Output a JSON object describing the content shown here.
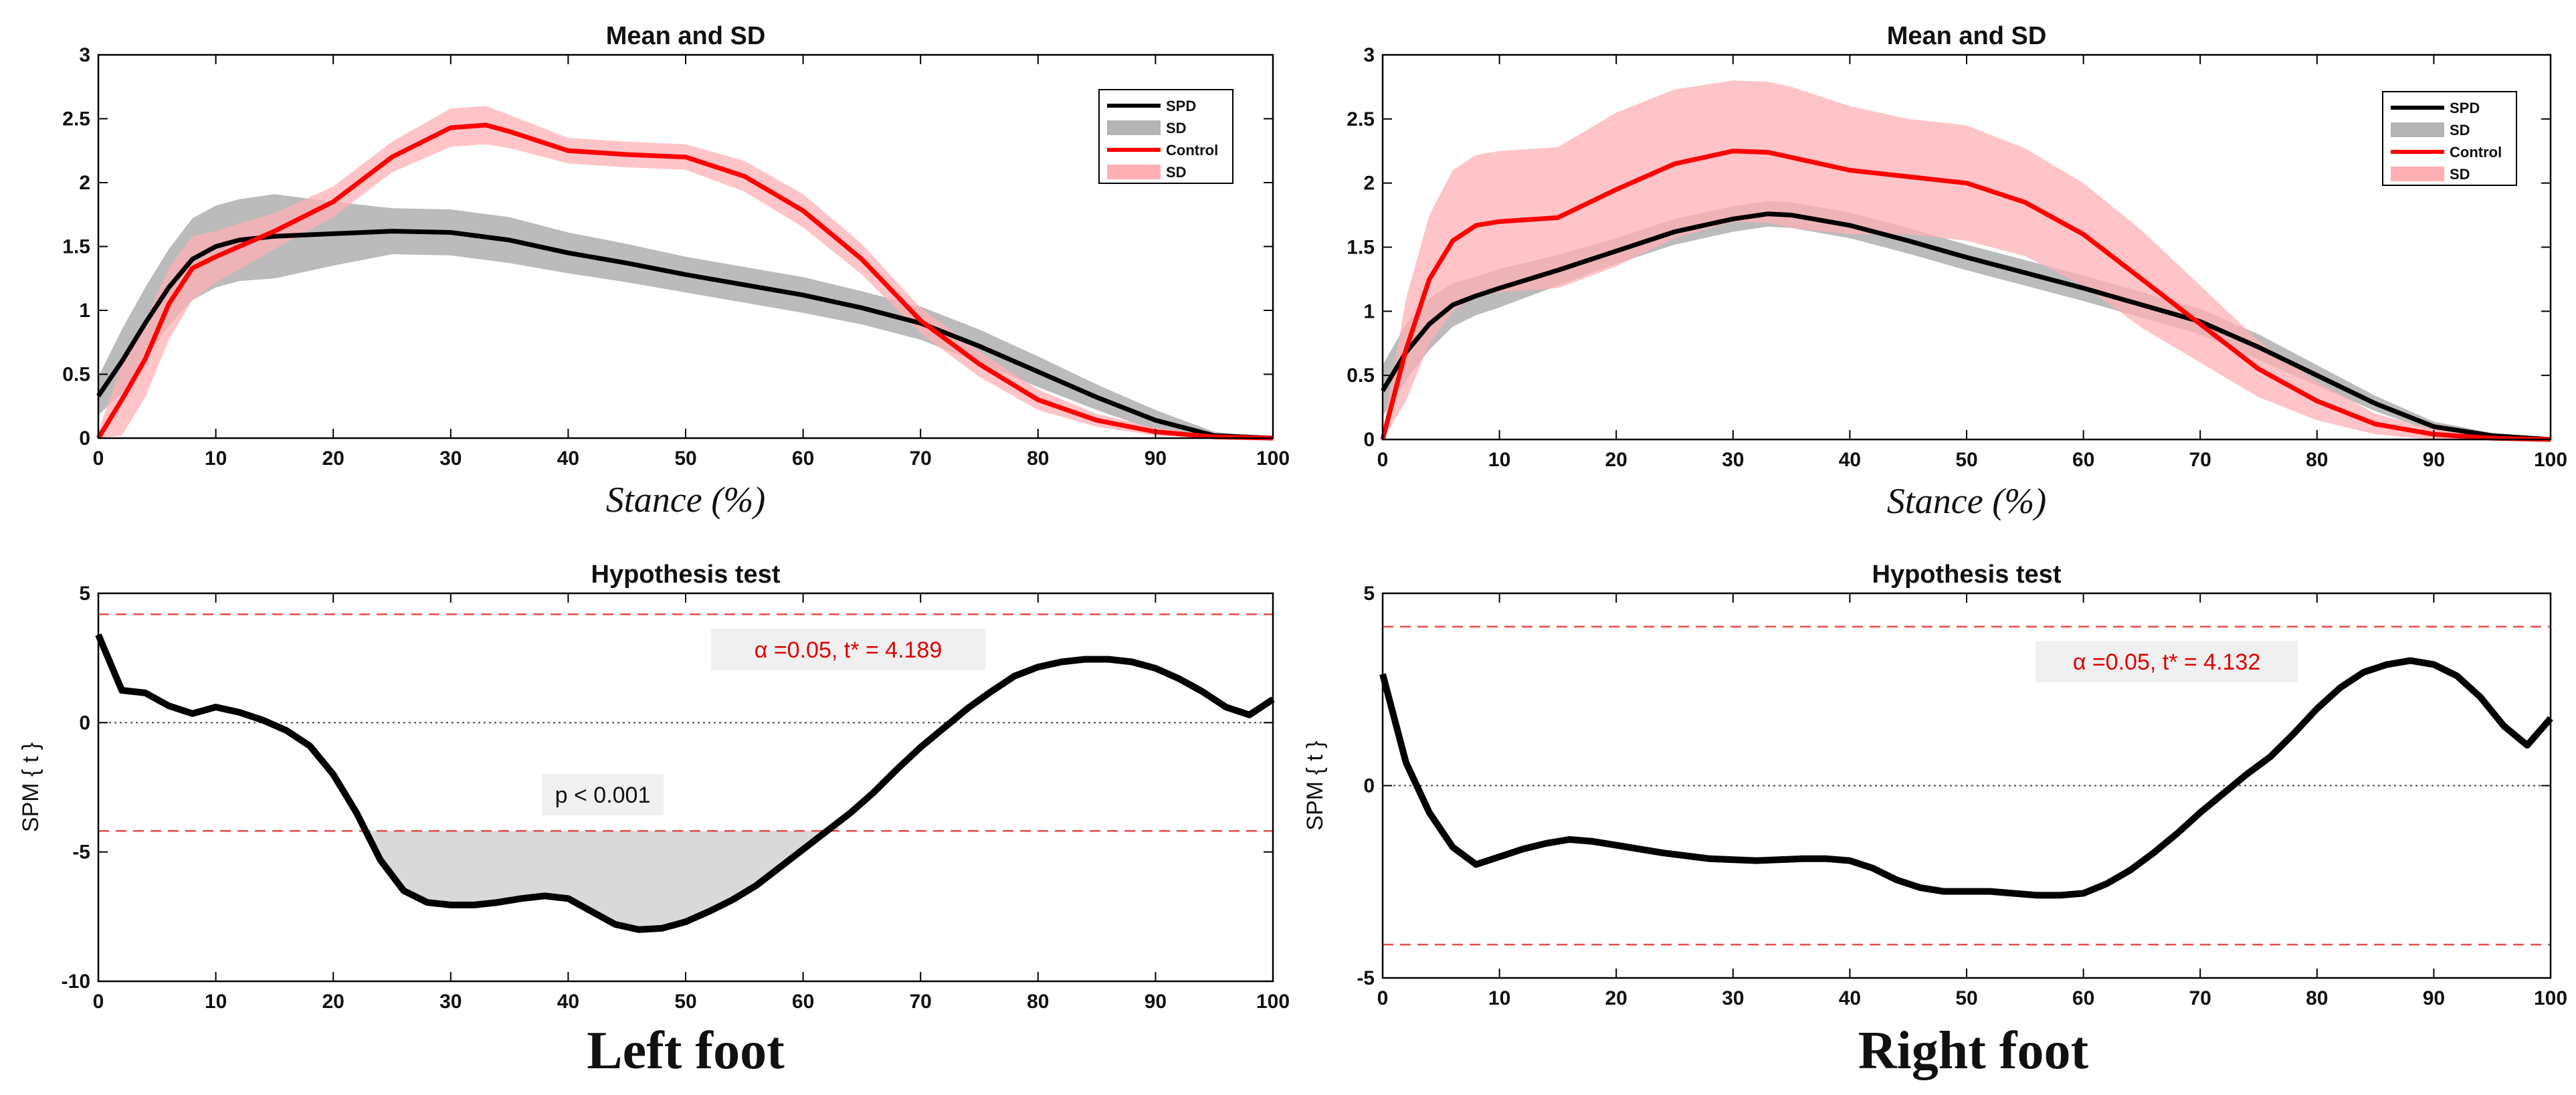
{
  "chart_data": [
    {
      "type": "line",
      "panel": "left-mean",
      "title": "Mean and SD",
      "xlabel": "Stance (%)",
      "ylabel": "",
      "xlim": [
        0,
        100
      ],
      "ylim": [
        0,
        3
      ],
      "xticks": [
        "0",
        "10",
        "20",
        "30",
        "40",
        "50",
        "60",
        "70",
        "80",
        "90",
        "100"
      ],
      "yticks": [
        "0",
        "0.5",
        "1",
        "1.5",
        "2",
        "2.5",
        "3"
      ],
      "legend_position": "top-right",
      "legend": [
        "SPD",
        "SD",
        "Control",
        "SD"
      ],
      "series": [
        {
          "name": "SPD",
          "color": "#000000",
          "x": [
            0,
            2,
            4,
            6,
            8,
            10,
            12,
            15,
            20,
            25,
            30,
            35,
            40,
            45,
            50,
            55,
            60,
            65,
            70,
            75,
            80,
            85,
            90,
            95,
            100
          ],
          "y": [
            0.33,
            0.6,
            0.9,
            1.18,
            1.4,
            1.5,
            1.55,
            1.58,
            1.6,
            1.62,
            1.61,
            1.55,
            1.45,
            1.37,
            1.28,
            1.2,
            1.12,
            1.02,
            0.9,
            0.72,
            0.52,
            0.32,
            0.14,
            0.02,
            0.0
          ],
          "sd": [
            0.15,
            0.25,
            0.28,
            0.3,
            0.32,
            0.32,
            0.32,
            0.33,
            0.25,
            0.18,
            0.18,
            0.18,
            0.16,
            0.15,
            0.14,
            0.14,
            0.14,
            0.13,
            0.13,
            0.13,
            0.12,
            0.1,
            0.08,
            0.03,
            0.0
          ]
        },
        {
          "name": "Control",
          "color": "#ff0000",
          "x": [
            0,
            2,
            4,
            6,
            8,
            10,
            12,
            15,
            20,
            25,
            30,
            33,
            35,
            40,
            45,
            50,
            55,
            60,
            65,
            70,
            75,
            80,
            85,
            90,
            95,
            100
          ],
          "y": [
            0.0,
            0.3,
            0.62,
            1.05,
            1.33,
            1.42,
            1.5,
            1.62,
            1.85,
            2.2,
            2.43,
            2.45,
            2.4,
            2.25,
            2.22,
            2.2,
            2.05,
            1.78,
            1.4,
            0.92,
            0.58,
            0.3,
            0.14,
            0.05,
            0.01,
            0.0
          ],
          "sd": [
            0.05,
            0.28,
            0.3,
            0.28,
            0.25,
            0.2,
            0.18,
            0.14,
            0.12,
            0.12,
            0.15,
            0.15,
            0.13,
            0.1,
            0.1,
            0.1,
            0.12,
            0.13,
            0.12,
            0.1,
            0.1,
            0.08,
            0.05,
            0.03,
            0.01,
            0.0
          ]
        }
      ]
    },
    {
      "type": "line",
      "panel": "right-mean",
      "title": "Mean and SD",
      "xlabel": "Stance (%)",
      "ylabel": "",
      "xlim": [
        0,
        100
      ],
      "ylim": [
        0,
        3
      ],
      "xticks": [
        "0",
        "10",
        "20",
        "30",
        "40",
        "50",
        "60",
        "70",
        "80",
        "90",
        "100"
      ],
      "yticks": [
        "0",
        "0.5",
        "1",
        "1.5",
        "2",
        "2.5",
        "3"
      ],
      "legend_position": "top-right",
      "legend": [
        "SPD",
        "SD",
        "Control",
        "SD"
      ],
      "series": [
        {
          "name": "SPD",
          "color": "#000000",
          "x": [
            0,
            2,
            4,
            6,
            8,
            10,
            15,
            20,
            25,
            30,
            33,
            35,
            40,
            45,
            50,
            55,
            60,
            65,
            70,
            75,
            80,
            85,
            90,
            95,
            100
          ],
          "y": [
            0.38,
            0.68,
            0.9,
            1.05,
            1.12,
            1.18,
            1.32,
            1.47,
            1.62,
            1.72,
            1.76,
            1.75,
            1.67,
            1.55,
            1.42,
            1.3,
            1.18,
            1.05,
            0.92,
            0.72,
            0.5,
            0.28,
            0.1,
            0.03,
            0.0
          ],
          "sd": [
            0.2,
            0.22,
            0.2,
            0.17,
            0.15,
            0.15,
            0.12,
            0.1,
            0.1,
            0.1,
            0.1,
            0.1,
            0.1,
            0.1,
            0.1,
            0.1,
            0.1,
            0.1,
            0.1,
            0.1,
            0.08,
            0.06,
            0.04,
            0.02,
            0.0
          ]
        },
        {
          "name": "Control",
          "color": "#ff0000",
          "x": [
            0,
            2,
            4,
            6,
            8,
            10,
            15,
            20,
            25,
            30,
            33,
            35,
            40,
            45,
            50,
            55,
            60,
            65,
            70,
            75,
            80,
            85,
            90,
            95,
            100
          ],
          "y": [
            0.0,
            0.7,
            1.25,
            1.55,
            1.67,
            1.7,
            1.73,
            1.95,
            2.15,
            2.25,
            2.24,
            2.2,
            2.1,
            2.05,
            2.0,
            1.85,
            1.6,
            1.25,
            0.9,
            0.55,
            0.3,
            0.12,
            0.04,
            0.01,
            0.0
          ],
          "sd": [
            0.05,
            0.4,
            0.5,
            0.55,
            0.55,
            0.55,
            0.55,
            0.6,
            0.58,
            0.55,
            0.55,
            0.55,
            0.5,
            0.45,
            0.45,
            0.42,
            0.4,
            0.38,
            0.3,
            0.22,
            0.15,
            0.08,
            0.04,
            0.02,
            0.0
          ]
        }
      ]
    },
    {
      "type": "line",
      "panel": "left-spm",
      "title": "Hypothesis test",
      "xlabel": "",
      "ylabel": "SPM { t }",
      "xlim": [
        0,
        100
      ],
      "ylim": [
        -10,
        5
      ],
      "xticks": [
        "0",
        "10",
        "20",
        "30",
        "40",
        "50",
        "60",
        "70",
        "80",
        "90",
        "100"
      ],
      "yticks": [
        "-10",
        "-5",
        "0",
        "5"
      ],
      "threshold": 4.189,
      "threshold_label": "α =0.05,    t* = 4.189",
      "cluster_label": "p < 0.001",
      "cluster_range": [
        22.5,
        63
      ],
      "series": [
        {
          "name": "SPM{t}",
          "color": "#000000",
          "x": [
            0,
            2,
            4,
            6,
            8,
            10,
            12,
            14,
            16,
            18,
            20,
            22,
            24,
            26,
            28,
            30,
            32,
            34,
            36,
            38,
            40,
            42,
            44,
            46,
            48,
            50,
            52,
            54,
            56,
            58,
            60,
            62,
            64,
            66,
            68,
            70,
            72,
            74,
            76,
            78,
            80,
            82,
            84,
            86,
            88,
            90,
            92,
            94,
            96,
            98,
            100
          ],
          "y": [
            3.4,
            1.25,
            1.15,
            0.65,
            0.35,
            0.6,
            0.4,
            0.1,
            -0.3,
            -0.9,
            -2.0,
            -3.5,
            -5.3,
            -6.5,
            -6.95,
            -7.05,
            -7.05,
            -6.95,
            -6.8,
            -6.7,
            -6.8,
            -7.3,
            -7.8,
            -8.0,
            -7.95,
            -7.7,
            -7.3,
            -6.85,
            -6.3,
            -5.6,
            -4.9,
            -4.2,
            -3.5,
            -2.7,
            -1.8,
            -0.95,
            -0.2,
            0.55,
            1.2,
            1.8,
            2.15,
            2.35,
            2.45,
            2.45,
            2.35,
            2.1,
            1.7,
            1.2,
            0.6,
            0.3,
            0.9
          ]
        }
      ]
    },
    {
      "type": "line",
      "panel": "right-spm",
      "title": "Hypothesis test",
      "xlabel": "",
      "ylabel": "SPM { t }",
      "xlim": [
        0,
        100
      ],
      "ylim": [
        -5,
        5
      ],
      "xticks": [
        "0",
        "10",
        "20",
        "30",
        "40",
        "50",
        "60",
        "70",
        "80",
        "90",
        "100"
      ],
      "yticks": [
        "-5",
        "0",
        "5"
      ],
      "threshold": 4.132,
      "threshold_label": "α =0.05,    t* = 4.132",
      "series": [
        {
          "name": "SPM{t}",
          "color": "#000000",
          "x": [
            0,
            2,
            4,
            6,
            8,
            10,
            12,
            14,
            16,
            18,
            20,
            24,
            28,
            32,
            36,
            38,
            40,
            42,
            44,
            46,
            48,
            50,
            52,
            54,
            56,
            58,
            60,
            62,
            64,
            66,
            68,
            70,
            72,
            74,
            76,
            78,
            80,
            82,
            84,
            86,
            88,
            90,
            92,
            94,
            96,
            98,
            100
          ],
          "y": [
            2.9,
            0.6,
            -0.7,
            -1.6,
            -2.05,
            -1.85,
            -1.65,
            -1.5,
            -1.4,
            -1.45,
            -1.55,
            -1.75,
            -1.9,
            -1.95,
            -1.9,
            -1.9,
            -1.95,
            -2.15,
            -2.45,
            -2.65,
            -2.75,
            -2.75,
            -2.75,
            -2.8,
            -2.85,
            -2.85,
            -2.8,
            -2.55,
            -2.2,
            -1.75,
            -1.25,
            -0.7,
            -0.2,
            0.3,
            0.75,
            1.35,
            2.0,
            2.55,
            2.95,
            3.15,
            3.25,
            3.15,
            2.85,
            2.3,
            1.55,
            1.05,
            1.75
          ]
        }
      ]
    }
  ],
  "foot_labels": {
    "left": "Left foot",
    "right": "Right foot"
  },
  "colors": {
    "spd": "#000000",
    "spd_band": "#b4b4b4",
    "control": "#ff0000",
    "control_band": "#ffb0b4",
    "cluster": "#d9d9d9",
    "threshold": "#e84a4a"
  }
}
